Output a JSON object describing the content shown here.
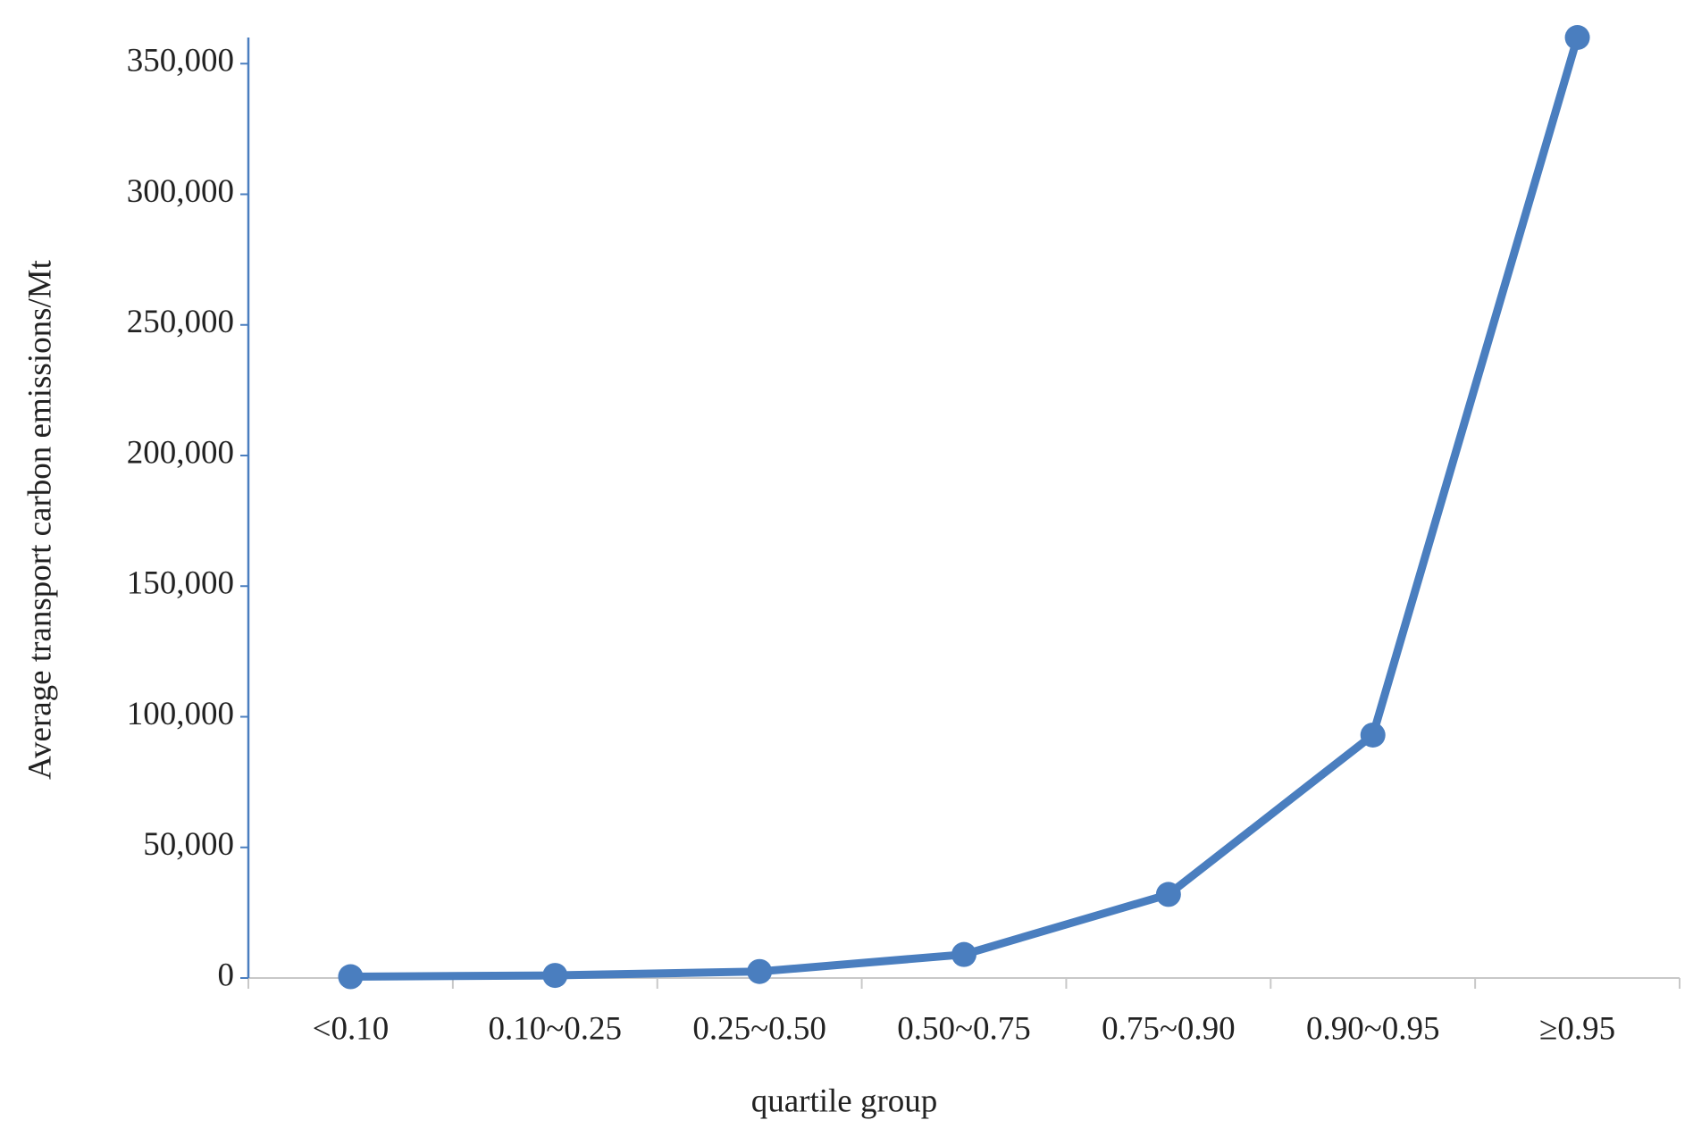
{
  "chart_data": {
    "type": "line",
    "x_label": "quartile group",
    "y_label": "Average transport carbon emissions/Mt",
    "categories": [
      "<0.10",
      "0.10~0.25",
      "0.25~0.50",
      "0.50~0.75",
      "0.75~0.90",
      "0.90~0.95",
      "≥0.95"
    ],
    "series": [
      {
        "color": "#4a7ebf",
        "values": [
          500,
          1000,
          2500,
          9000,
          32000,
          93000,
          360000
        ]
      }
    ],
    "ylim": [
      0,
      360000
    ],
    "yticks": [
      0,
      {
        "value": 50000,
        "label": "50,000"
      },
      {
        "value": 100000,
        "label": "100,000"
      },
      {
        "value": 150000,
        "label": "150,000"
      },
      {
        "value": 200000,
        "label": "200,000"
      },
      {
        "value": 250000,
        "label": "250,000"
      },
      {
        "value": 300000,
        "label": "300,000"
      },
      {
        "value": 350000,
        "label": "350,000"
      }
    ],
    "grid": false
  }
}
